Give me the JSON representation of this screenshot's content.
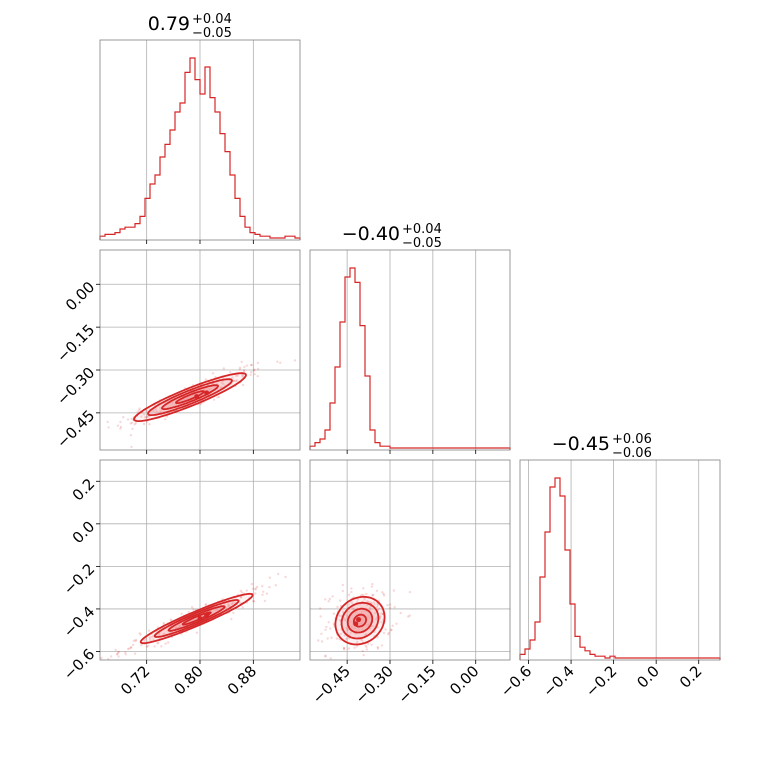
{
  "chart_data": {
    "type": "corner",
    "color": "#d62728",
    "fill_color": "#f0a0a3",
    "grid": true,
    "parameters": [
      {
        "title": {
          "main": "0.79",
          "upper": "+0.04",
          "lower": "−0.05"
        },
        "median": 0.79,
        "range": [
          0.65,
          0.95
        ],
        "ticks": [
          0.72,
          0.8,
          0.88
        ],
        "tick_labels": [
          "0.72",
          "0.80",
          "0.88"
        ],
        "hist": [
          1,
          2,
          2,
          3,
          5,
          6,
          6,
          8,
          12,
          22,
          30,
          35,
          45,
          52,
          60,
          70,
          75,
          92,
          100,
          88,
          80,
          95,
          78,
          70,
          58,
          48,
          35,
          22,
          12,
          6,
          3,
          2,
          1,
          1,
          0,
          0,
          0,
          1,
          1,
          0
        ]
      },
      {
        "title": {
          "main": "−0.40",
          "upper": "+0.04",
          "lower": "−0.05"
        },
        "median": -0.4,
        "range": [
          -0.58,
          0.12
        ],
        "ticks": [
          -0.45,
          -0.3,
          -0.15,
          0.0
        ],
        "tick_labels": [
          "−0.45",
          "−0.30",
          "−0.15",
          "0.00"
        ],
        "hist": [
          1,
          3,
          5,
          10,
          25,
          45,
          70,
          95,
          100,
          92,
          68,
          40,
          10,
          3,
          1,
          1,
          0,
          0,
          0,
          0,
          0,
          0,
          0,
          0,
          0,
          0,
          0,
          0,
          0,
          0,
          0,
          0,
          0,
          0,
          0,
          0,
          0,
          0,
          0,
          0
        ]
      },
      {
        "title": {
          "main": "−0.45",
          "upper": "+0.06",
          "lower": "−0.06"
        },
        "median": -0.45,
        "range": [
          -0.64,
          0.3
        ],
        "ticks": [
          -0.6,
          -0.4,
          -0.2,
          0.0,
          0.2
        ],
        "tick_labels": [
          "−0.6",
          "−0.4",
          "−0.2",
          "0.0",
          "0.2"
        ],
        "hist": [
          2,
          5,
          10,
          20,
          45,
          70,
          95,
          100,
          90,
          60,
          30,
          12,
          6,
          4,
          2,
          1,
          1,
          0,
          1,
          0,
          0,
          0,
          0,
          0,
          0,
          0,
          0,
          0,
          0,
          0,
          0,
          0,
          0,
          0,
          0,
          0,
          0,
          0,
          0,
          0
        ]
      }
    ],
    "left_tick_rows": [
      {
        "row": 1,
        "ticks": [
          0.0,
          -0.15,
          -0.3,
          -0.45
        ],
        "tick_labels": [
          "0.00",
          "−0.15",
          "−0.30",
          "−0.45"
        ]
      },
      {
        "row": 2,
        "ticks": [
          0.2,
          0.0,
          -0.2,
          -0.4,
          -0.6
        ],
        "tick_labels": [
          "0.2",
          "0.0",
          "−0.2",
          "−0.4",
          "−0.6"
        ]
      }
    ],
    "pairs": [
      {
        "x": 0,
        "y": 1,
        "ellipse": {
          "cx": 0.785,
          "cy": -0.395,
          "sx": 0.042,
          "sy": 0.042,
          "rho": 0.92
        },
        "peaks": [
          [
            0.795,
            -0.393
          ],
          [
            0.81,
            -0.38
          ]
        ]
      },
      {
        "x": 0,
        "y": 2,
        "ellipse": {
          "cx": 0.795,
          "cy": -0.445,
          "sx": 0.042,
          "sy": 0.058,
          "rho": 0.95
        },
        "peaks": [
          [
            0.8,
            -0.445
          ],
          [
            0.81,
            -0.43
          ]
        ]
      },
      {
        "x": 1,
        "y": 2,
        "ellipse": {
          "cx": -0.405,
          "cy": -0.455,
          "sx": 0.043,
          "sy": 0.056,
          "rho": 0.15
        },
        "peaks": [
          [
            -0.41,
            -0.45
          ],
          [
            -0.42,
            -0.47
          ]
        ]
      }
    ]
  }
}
